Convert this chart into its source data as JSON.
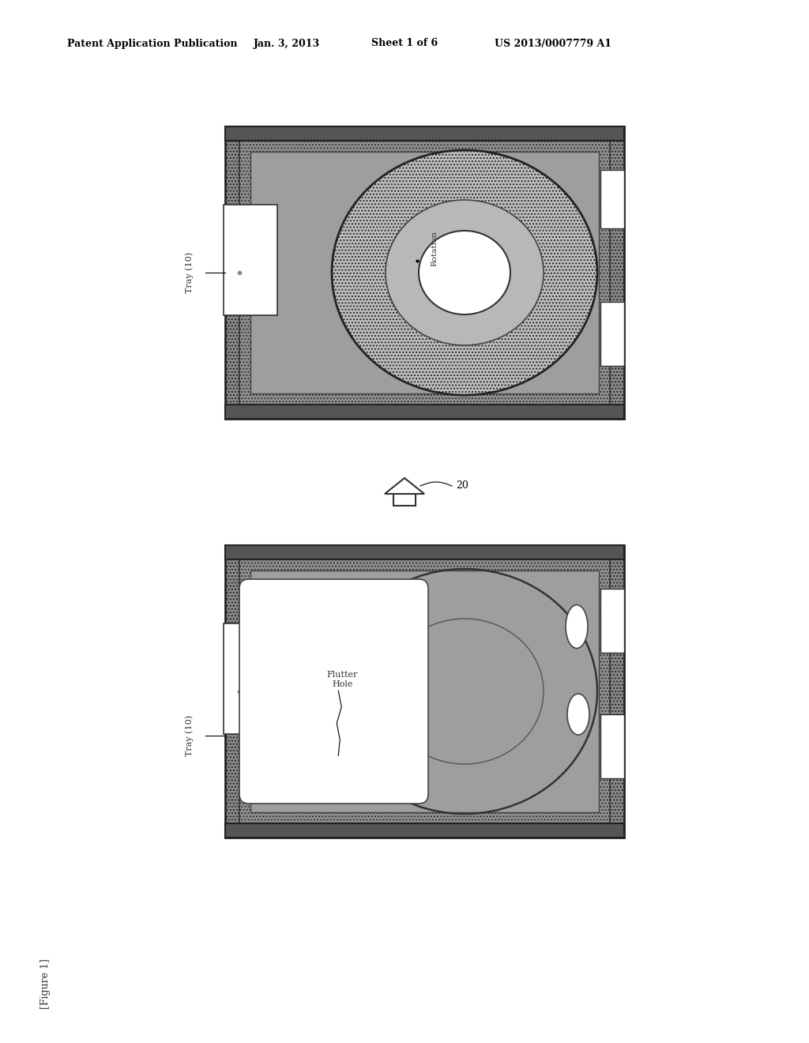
{
  "bg_color": "#ffffff",
  "header_text1": "Patent Application Publication",
  "header_text2": "Jan. 3, 2013",
  "header_text3": "Sheet 1 of 6",
  "header_text4": "US 2013/0007779 A1",
  "footer_text": "[Figure 1]",
  "tray_label": "Tray (10)",
  "arrow_label": "20",
  "rotation_label": "Rotation",
  "flutter_hole_label": "Flutter\nHole",
  "tray_gray": "#888888",
  "tray_dark": "#555555",
  "tray_mid": "#aaaaaa",
  "disk_gray": "#bbbbbb",
  "inner_gray": "#b0b0b0"
}
